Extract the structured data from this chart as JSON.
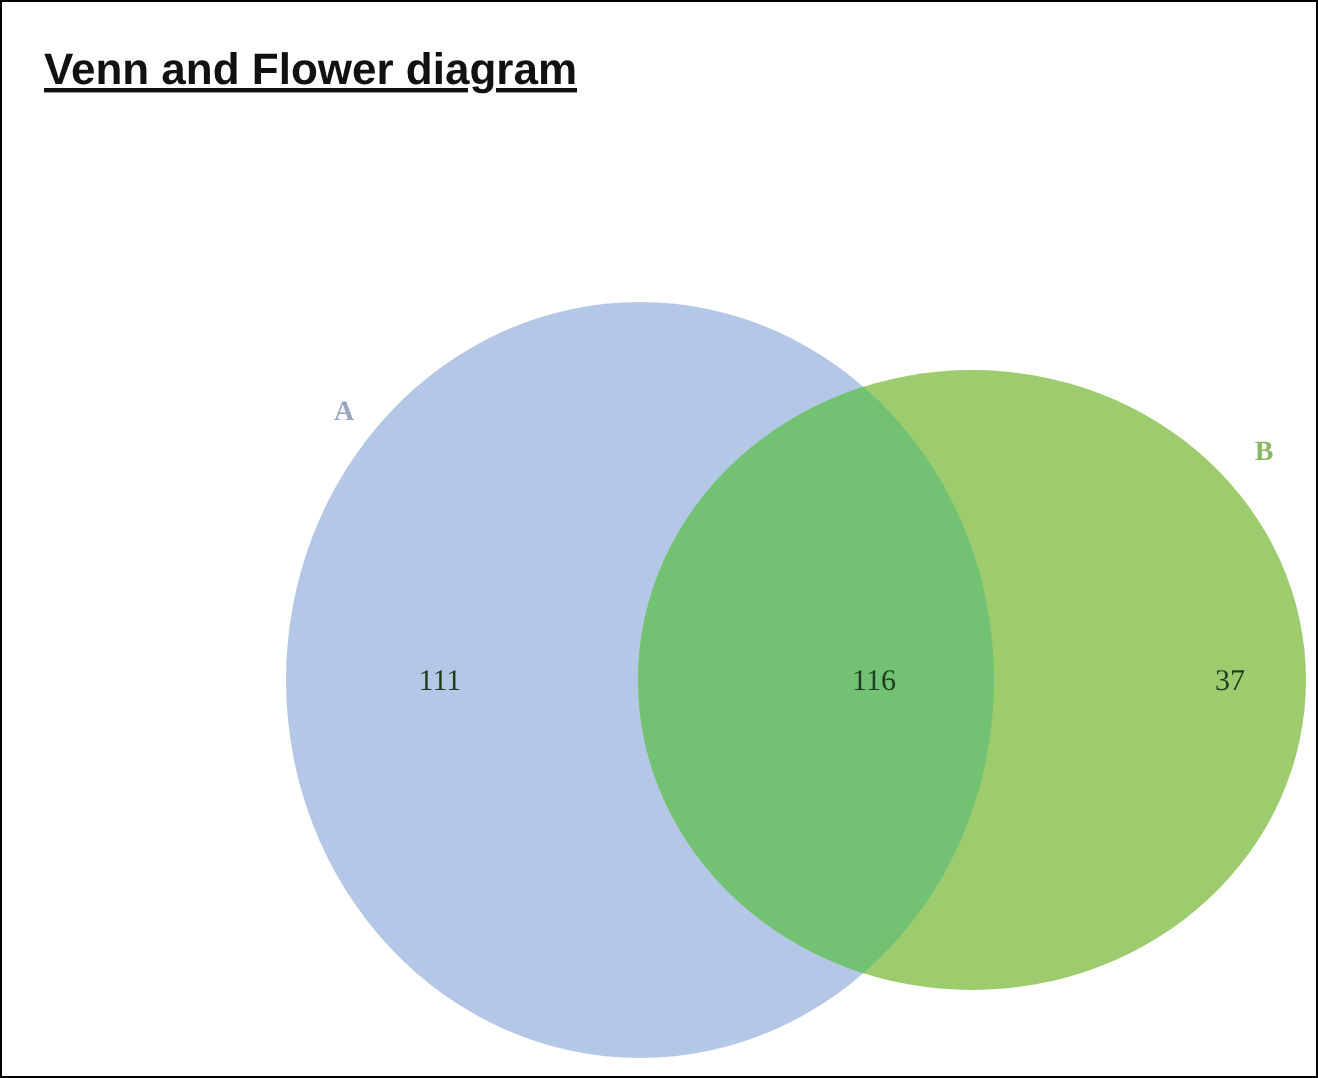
{
  "chart_data": {
    "type": "other",
    "title": "Venn and Flower diagram",
    "categories": [
      null,
      null,
      null
    ],
    "values": [
      111,
      116,
      37
    ],
    "data_labels": true,
    "colors": [
      "#b4c7e7",
      "#73c172",
      "#9ccc6e"
    ],
    "annotations": [
      "A",
      "B"
    ]
  }
}
